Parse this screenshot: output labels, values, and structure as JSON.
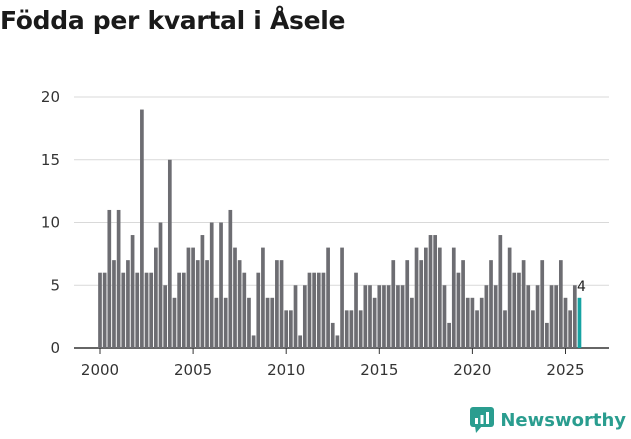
{
  "title": "Födda per kvartal i Åsele",
  "brand": {
    "name": "Newsworthy",
    "icon": "newsworthy-logo-icon",
    "color": "#2a9d8f"
  },
  "colors": {
    "bar": "#6d6d72",
    "highlight": "#16a3a3",
    "grid": "#d9d9d9",
    "axis": "#333333"
  },
  "chart_data": {
    "type": "bar",
    "title": "Födda per kvartal i Åsele",
    "xlabel": "",
    "ylabel": "",
    "x_start": "2000 Q1",
    "x_ticks": [
      "2000",
      "2005",
      "2010",
      "2015",
      "2020",
      "2025"
    ],
    "y_ticks": [
      "0",
      "5",
      "10",
      "15",
      "20"
    ],
    "ylim": [
      0,
      20
    ],
    "grid": true,
    "values": [
      6,
      6,
      11,
      7,
      11,
      6,
      7,
      9,
      6,
      19,
      6,
      6,
      8,
      10,
      5,
      15,
      4,
      6,
      6,
      8,
      8,
      7,
      9,
      7,
      10,
      4,
      10,
      4,
      11,
      8,
      7,
      6,
      4,
      1,
      6,
      8,
      4,
      4,
      7,
      7,
      3,
      3,
      5,
      1,
      5,
      6,
      6,
      6,
      6,
      8,
      2,
      1,
      8,
      3,
      3,
      6,
      3,
      5,
      5,
      4,
      5,
      5,
      5,
      7,
      5,
      5,
      7,
      4,
      8,
      7,
      8,
      9,
      9,
      8,
      5,
      2,
      8,
      6,
      7,
      4,
      4,
      3,
      4,
      5,
      7,
      5,
      9,
      3,
      8,
      6,
      6,
      7,
      5,
      3,
      5,
      7,
      2,
      5,
      5,
      7,
      4,
      3,
      5,
      4
    ],
    "highlight_last": true,
    "last_label": "4"
  }
}
